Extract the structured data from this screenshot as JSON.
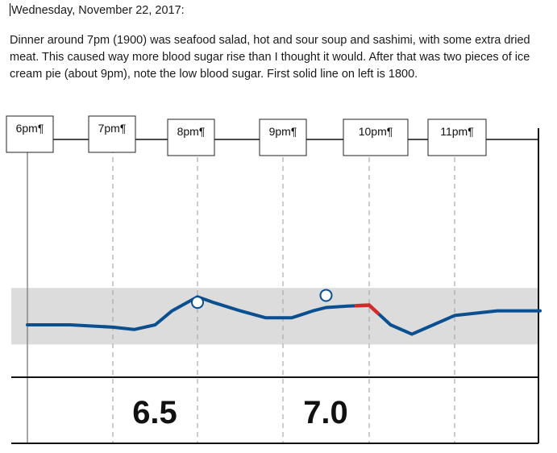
{
  "document": {
    "date_line": "Wednesday, November 22, 2017: ",
    "paragraph_lines": [
      "Dinner around 7pm (1900) was seafood salad, hot and sour soup and sashimi, with some extra dried",
      "meat.  This caused way more blood sugar rise than I thought it would. After that was two pieces of ice",
      "cream pie (about 9pm), note the low blood sugar.  First solid line on left is 1800."
    ]
  },
  "chart_data": {
    "type": "line",
    "x_ticks": [
      "6pm",
      "7pm",
      "8pm",
      "9pm",
      "10pm",
      "11pm"
    ],
    "xlim": [
      18.0,
      24.0
    ],
    "target_range": [
      0.42,
      0.79
    ],
    "series": [
      {
        "color": "#0a4f8f",
        "low_color": "#d42a2a",
        "x": [
          18.0,
          18.5,
          19.0,
          19.25,
          19.5,
          19.7,
          20.0,
          20.2,
          20.5,
          20.8,
          21.1,
          21.35,
          21.5,
          21.75,
          22.0,
          22.25,
          22.5,
          22.75,
          23.0,
          23.5,
          24.0
        ],
        "y": [
          0.0,
          0.0,
          -0.05,
          -0.1,
          0.0,
          0.3,
          0.6,
          0.47,
          0.3,
          0.15,
          0.15,
          0.3,
          0.37,
          0.4,
          0.42,
          0.0,
          -0.2,
          0.0,
          0.2,
          0.3,
          0.3
        ]
      }
    ],
    "low_segment": [
      21.85,
      22.1
    ],
    "markers": [
      {
        "x": 20.0,
        "y": 0.48
      },
      {
        "x": 21.5,
        "y": 0.63
      }
    ],
    "annotations": [
      "6.5",
      "7.0"
    ]
  }
}
